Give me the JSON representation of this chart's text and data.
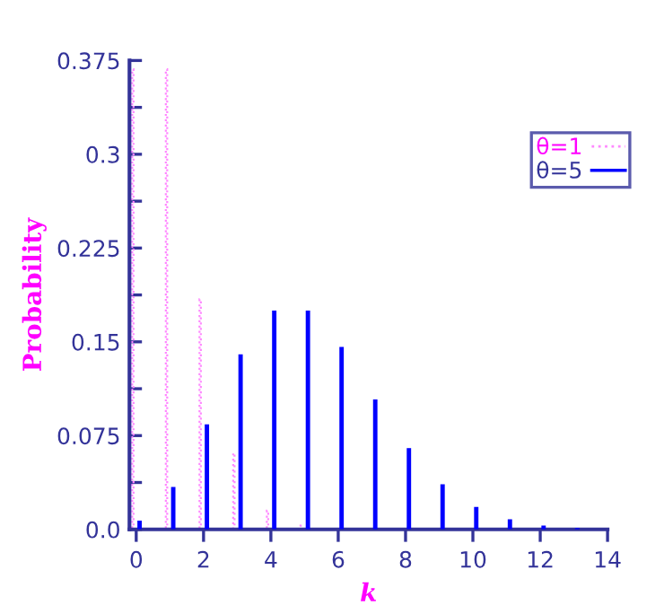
{
  "chart_data": {
    "type": "bar",
    "xlabel": "k",
    "ylabel": "Probability",
    "xlim": [
      -0.2,
      14
    ],
    "ylim": [
      0,
      0.375
    ],
    "xticks": [
      0,
      2,
      4,
      6,
      8,
      10,
      12,
      14
    ],
    "yticks": [
      {
        "value": 0,
        "label": "0.0"
      },
      {
        "value": 0.0375,
        "label": null
      },
      0.075,
      {
        "value": 0.1125,
        "label": null
      },
      0.15,
      {
        "value": 0.1875,
        "label": null
      },
      0.225,
      {
        "value": 0.2625,
        "label": null
      },
      0.3,
      {
        "value": 0.3375,
        "label": null
      },
      0.375
    ],
    "legend": "top right",
    "grid": false,
    "series": [
      {
        "name": "θ=1",
        "color": "#ff88ff",
        "line_style": "dotted",
        "x": [
          -0.1,
          0.9,
          1.9,
          2.9,
          3.9,
          4.9
        ],
        "values": [
          0.368,
          0.368,
          0.184,
          0.061,
          0.015,
          0.003
        ]
      },
      {
        "name": "θ=5",
        "color": "#0000ff",
        "line_style": "solid",
        "x": [
          0.1,
          1.1,
          2.1,
          3.1,
          4.1,
          5.1,
          6.1,
          7.1,
          8.1,
          9.1,
          10.1,
          11.1,
          12.1,
          13.1
        ],
        "values": [
          0.007,
          0.034,
          0.084,
          0.14,
          0.175,
          0.175,
          0.146,
          0.104,
          0.065,
          0.036,
          0.018,
          0.008,
          0.003,
          0.001
        ]
      }
    ]
  }
}
